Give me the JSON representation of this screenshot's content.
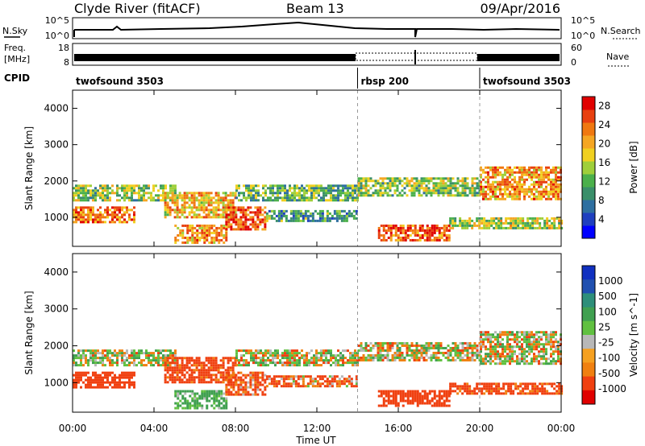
{
  "header": {
    "station": "Clyde River (fitACF)",
    "beam": "Beam 13",
    "date": "09/Apr/2016"
  },
  "noise_panel": {
    "left_label": "N.Sky",
    "right_label": "N.Search",
    "left_ticks": [
      "10^5",
      "10^0"
    ],
    "right_ticks": [
      "10^5",
      "10^0"
    ]
  },
  "freq_panel": {
    "left_label_1": "Freq.",
    "left_label_2": "[MHz]",
    "left_ticks": [
      "18",
      "8"
    ],
    "right_label": "Nave",
    "right_ticks": [
      "60",
      "0"
    ]
  },
  "cpid": {
    "label": "CPID",
    "modes": [
      {
        "name": "twofsound 3503",
        "start_hour": 0,
        "end_hour": 14
      },
      {
        "name": "rbsp 200",
        "start_hour": 14,
        "end_hour": 20
      },
      {
        "name": "twofsound 3503",
        "start_hour": 20,
        "end_hour": 24
      }
    ]
  },
  "colors": {
    "power_scale": [
      "#0000ff",
      "#1f3fbf",
      "#2e6fa0",
      "#3a8f6a",
      "#4bb04b",
      "#9fcf3a",
      "#f0d020",
      "#f5a623",
      "#f07810",
      "#e84010",
      "#e00000"
    ],
    "velocity_scale": [
      "#e00000",
      "#f04010",
      "#f08010",
      "#f5a020",
      "#b8b8b8",
      "#60c040",
      "#40a050",
      "#2e8f7a",
      "#2050b0",
      "#1030c0"
    ]
  },
  "chart_data": [
    {
      "type": "heatmap",
      "title": "Power",
      "xlabel": "Time UT",
      "ylabel": "Slant Range [km]",
      "x_ticks": [
        "00:00",
        "04:00",
        "08:00",
        "12:00",
        "16:00",
        "20:00",
        "00:00"
      ],
      "xlim_hours": [
        0,
        24
      ],
      "ylim": [
        200,
        4500
      ],
      "y_ticks": [
        1000,
        2000,
        3000,
        4000
      ],
      "colorbar": {
        "label": "Power [dB]",
        "ticks": [
          4,
          8,
          12,
          16,
          20,
          24,
          28
        ],
        "range": [
          0,
          30
        ]
      },
      "echo_bands": [
        {
          "start_hour": 0.0,
          "end_hour": 5.0,
          "range_start_km": 1500,
          "range_end_km": 1900,
          "power_db": 14
        },
        {
          "start_hour": 0.0,
          "end_hour": 3.0,
          "range_start_km": 900,
          "range_end_km": 1300,
          "power_db": 24
        },
        {
          "start_hour": 4.5,
          "end_hour": 8.0,
          "range_start_km": 1000,
          "range_end_km": 1700,
          "power_db": 20
        },
        {
          "start_hour": 5.0,
          "end_hour": 7.5,
          "range_start_km": 300,
          "range_end_km": 800,
          "power_db": 22
        },
        {
          "start_hour": 7.5,
          "end_hour": 9.5,
          "range_start_km": 700,
          "range_end_km": 1300,
          "power_db": 26
        },
        {
          "start_hour": 8.0,
          "end_hour": 14.0,
          "range_start_km": 1500,
          "range_end_km": 1900,
          "power_db": 12
        },
        {
          "start_hour": 9.5,
          "end_hour": 14.0,
          "range_start_km": 900,
          "range_end_km": 1200,
          "power_db": 10
        },
        {
          "start_hour": 14.0,
          "end_hour": 20.0,
          "range_start_km": 1600,
          "range_end_km": 2100,
          "power_db": 14
        },
        {
          "start_hour": 15.0,
          "end_hour": 18.5,
          "range_start_km": 400,
          "range_end_km": 800,
          "power_db": 26
        },
        {
          "start_hour": 18.5,
          "end_hour": 24.0,
          "range_start_km": 700,
          "range_end_km": 1000,
          "power_db": 16
        },
        {
          "start_hour": 20.0,
          "end_hour": 24.0,
          "range_start_km": 1500,
          "range_end_km": 2400,
          "power_db": 22
        }
      ]
    },
    {
      "type": "heatmap",
      "title": "Velocity",
      "xlabel": "Time UT",
      "ylabel": "Slant Range [km]",
      "x_ticks": [
        "00:00",
        "04:00",
        "08:00",
        "12:00",
        "16:00",
        "20:00",
        "00:00"
      ],
      "xlim_hours": [
        0,
        24
      ],
      "ylim": [
        200,
        4500
      ],
      "y_ticks": [
        1000,
        2000,
        3000,
        4000
      ],
      "colorbar": {
        "label": "Velocity [m s^-1]",
        "ticks": [
          1000,
          500,
          100,
          25,
          -25,
          -100,
          -500,
          -1000
        ]
      },
      "echo_bands": [
        {
          "start_hour": 0.0,
          "end_hour": 5.0,
          "range_start_km": 1500,
          "range_end_km": 1900,
          "velocity": 25
        },
        {
          "start_hour": 0.0,
          "end_hour": 3.0,
          "range_start_km": 900,
          "range_end_km": 1300,
          "velocity": -300
        },
        {
          "start_hour": 4.5,
          "end_hour": 8.0,
          "range_start_km": 1000,
          "range_end_km": 1700,
          "velocity": -200
        },
        {
          "start_hour": 5.0,
          "end_hour": 7.5,
          "range_start_km": 300,
          "range_end_km": 800,
          "velocity": 150
        },
        {
          "start_hour": 7.5,
          "end_hour": 9.5,
          "range_start_km": 700,
          "range_end_km": 1300,
          "velocity": -150
        },
        {
          "start_hour": 8.0,
          "end_hour": 14.0,
          "range_start_km": 1500,
          "range_end_km": 1900,
          "velocity": 0
        },
        {
          "start_hour": 9.5,
          "end_hour": 14.0,
          "range_start_km": 900,
          "range_end_km": 1200,
          "velocity": -100
        },
        {
          "start_hour": 14.0,
          "end_hour": 20.0,
          "range_start_km": 1600,
          "range_end_km": 2100,
          "velocity": 0
        },
        {
          "start_hour": 15.0,
          "end_hour": 18.5,
          "range_start_km": 400,
          "range_end_km": 800,
          "velocity": -300
        },
        {
          "start_hour": 18.5,
          "end_hour": 24.0,
          "range_start_km": 700,
          "range_end_km": 1000,
          "velocity": -200
        },
        {
          "start_hour": 20.0,
          "end_hour": 24.0,
          "range_start_km": 1500,
          "range_end_km": 2400,
          "velocity": 0
        }
      ]
    }
  ]
}
